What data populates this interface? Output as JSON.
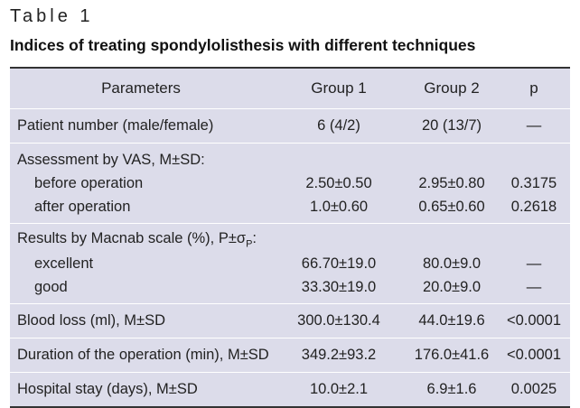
{
  "caption": "Table 1",
  "title": "Indices of treating spondylolisthesis with different techniques",
  "headers": [
    "Parameters",
    "Group 1",
    "Group 2",
    "p"
  ],
  "rows": {
    "patient": {
      "label": "Patient number (male/female)",
      "g1": "6 (4/2)",
      "g2": "20 (13/7)",
      "p": "—"
    },
    "vas": {
      "label": "Assessment by VAS, M±SD:",
      "before": {
        "label": "before operation",
        "g1": "2.50±0.50",
        "g2": "2.95±0.80",
        "p": "0.3175"
      },
      "after": {
        "label": "after operation",
        "g1": "1.0±0.60",
        "g2": "0.65±0.60",
        "p": "0.2618"
      }
    },
    "macnab": {
      "label_main": "Results by Macnab scale (%), P±σ",
      "label_sub": "P",
      "label_end": ":",
      "excellent": {
        "label": "excellent",
        "g1": "66.70±19.0",
        "g2": "80.0±9.0",
        "p": "—"
      },
      "good": {
        "label": "good",
        "g1": "33.30±19.0",
        "g2": "20.0±9.0",
        "p": "—"
      }
    },
    "blood": {
      "label": "Blood loss (ml), M±SD",
      "g1": "300.0±130.4",
      "g2": "44.0±19.6",
      "p": "<0.0001"
    },
    "duration": {
      "label": "Duration of the operation (min), M±SD",
      "g1": "349.2±93.2",
      "g2": "176.0±41.6",
      "p": "<0.0001"
    },
    "stay": {
      "label": "Hospital stay (days), M±SD",
      "g1": "10.0±2.1",
      "g2": "6.9±1.6",
      "p": "0.0025"
    }
  },
  "colors": {
    "table_bg": "#dcdcea",
    "rule": "#333333"
  }
}
